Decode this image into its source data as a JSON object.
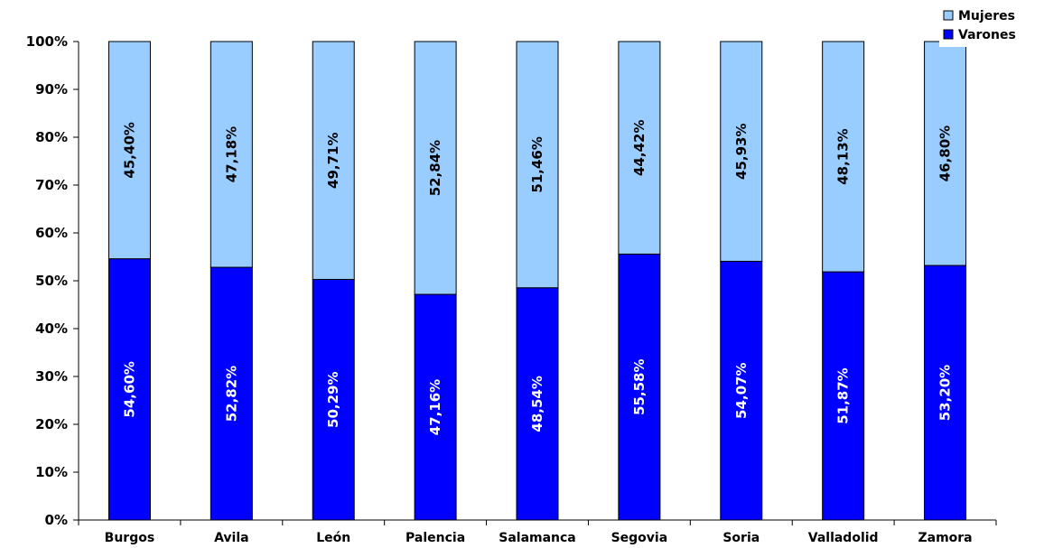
{
  "chart_data": {
    "type": "bar",
    "stacked": true,
    "percent": true,
    "categories": [
      "Burgos",
      "Avila",
      "León",
      "Palencia",
      "Salamanca",
      "Segovia",
      "Soria",
      "Valladolid",
      "Zamora"
    ],
    "series": [
      {
        "name": "Varones",
        "color": "#0000ff",
        "label_color": "#ffffff",
        "values": [
          54.6,
          52.82,
          50.29,
          47.16,
          48.54,
          55.58,
          54.07,
          51.87,
          53.2
        ],
        "labels": [
          "54,60%",
          "52,82%",
          "50,29%",
          "47,16%",
          "48,54%",
          "55,58%",
          "54,07%",
          "51,87%",
          "53,20%"
        ]
      },
      {
        "name": "Mujeres",
        "color": "#99ccff",
        "label_color": "#000000",
        "values": [
          45.4,
          47.18,
          49.71,
          52.84,
          51.46,
          44.42,
          45.93,
          48.13,
          46.8
        ],
        "labels": [
          "45,40%",
          "47,18%",
          "49,71%",
          "52,84%",
          "51,46%",
          "44,42%",
          "45,93%",
          "48,13%",
          "46,80%"
        ]
      }
    ],
    "ylim": [
      0,
      100
    ],
    "yticks": [
      "0%",
      "10%",
      "20%",
      "30%",
      "40%",
      "50%",
      "60%",
      "70%",
      "80%",
      "90%",
      "100%"
    ],
    "legend": {
      "placement": "top-right",
      "entries": [
        "Mujeres",
        "Varones"
      ]
    },
    "grid": false
  }
}
